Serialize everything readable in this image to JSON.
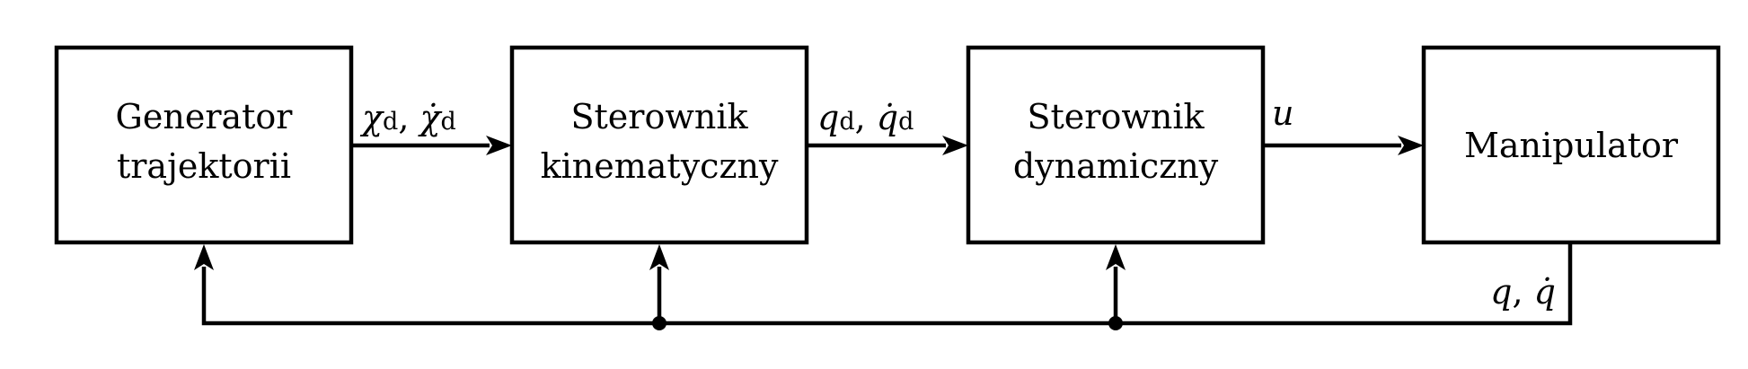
{
  "blocks": {
    "generator": {
      "line1": "Generator",
      "line2": "trajektorii"
    },
    "kinematic": {
      "line1": "Sterownik",
      "line2": "kinematyczny"
    },
    "dynamic": {
      "line1": "Sterownik",
      "line2": "dynamiczny"
    },
    "manipulator": {
      "line1": "Manipulator"
    }
  },
  "signals": {
    "chi": {
      "base": "χ",
      "base_dot": "χ̇",
      "sub": "d",
      "sep": ", "
    },
    "qd": {
      "base": "q",
      "base_dot": "q̇",
      "sub": "d",
      "sep": ", "
    },
    "u": {
      "base": "u"
    },
    "feedback": {
      "base": "q",
      "sep": ", ",
      "base_dot": "q̇"
    }
  }
}
